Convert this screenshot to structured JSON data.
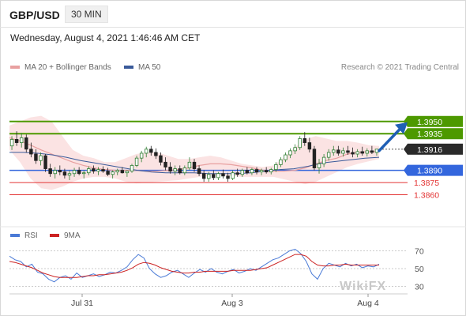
{
  "header": {
    "pair": "GBP/USD",
    "timeframe": "30 MIN"
  },
  "datetime": "Wednesday, August 4, 2021 1:46:46 AM CET",
  "legend": {
    "ma20_label": "MA 20 + Bollinger Bands",
    "ma50_label": "MA 50",
    "credit": "Research © 2021 Trading Central"
  },
  "rsi_legend": {
    "rsi_label": "RSI",
    "ma_label": "9MA"
  },
  "watermark": "WikiFX",
  "colors": {
    "ma20": "#e8a0a0",
    "ma50": "#3a5a9a",
    "bollinger_fill": "#fbe3e3",
    "resistance": "#4d9900",
    "pivot": "#3366dd",
    "support": "#e33333",
    "candle_up": "#2e7d32",
    "candle_down": "#222222",
    "arrow": "#1f5fb5",
    "current_tag": "#2a2a2a",
    "rsi": "#4a7ad6",
    "rsi_ma": "#cc2222"
  },
  "chart_data": [
    {
      "type": "candlestick",
      "x_ticks": [
        "Jul 31",
        "Aug 3",
        "Aug 4"
      ],
      "ylim": [
        1.3845,
        1.3975
      ],
      "levels": [
        {
          "label": "1.3950",
          "value": 1.395,
          "kind": "resistance"
        },
        {
          "label": "1.3935",
          "value": 1.3935,
          "kind": "resistance"
        },
        {
          "label": "1.3916",
          "value": 1.3916,
          "kind": "current"
        },
        {
          "label": "1.3890",
          "value": 1.389,
          "kind": "pivot"
        },
        {
          "label": "1.3875",
          "value": 1.3875,
          "kind": "support"
        },
        {
          "label": "1.3860",
          "value": 1.386,
          "kind": "support"
        }
      ],
      "candles": [
        [
          1.392,
          1.3932,
          1.3915,
          1.3928
        ],
        [
          1.3928,
          1.3938,
          1.392,
          1.3924
        ],
        [
          1.3924,
          1.3936,
          1.3918,
          1.393
        ],
        [
          1.393,
          1.3934,
          1.3912,
          1.3916
        ],
        [
          1.3916,
          1.3924,
          1.3906,
          1.391
        ],
        [
          1.391,
          1.3916,
          1.3898,
          1.3902
        ],
        [
          1.3902,
          1.3912,
          1.3896,
          1.3908
        ],
        [
          1.3908,
          1.391,
          1.3888,
          1.3892
        ],
        [
          1.3892,
          1.3898,
          1.3882,
          1.3886
        ],
        [
          1.3886,
          1.3894,
          1.388,
          1.389
        ],
        [
          1.389,
          1.3896,
          1.3884,
          1.3888
        ],
        [
          1.3888,
          1.3892,
          1.388,
          1.3884
        ],
        [
          1.3884,
          1.389,
          1.3878,
          1.3886
        ],
        [
          1.3886,
          1.3893,
          1.3882,
          1.389
        ],
        [
          1.389,
          1.3894,
          1.3884,
          1.3886
        ],
        [
          1.3886,
          1.389,
          1.388,
          1.3887
        ],
        [
          1.3887,
          1.3895,
          1.3884,
          1.3892
        ],
        [
          1.3892,
          1.3896,
          1.3886,
          1.3889
        ],
        [
          1.3889,
          1.3894,
          1.3884,
          1.3891
        ],
        [
          1.3891,
          1.3895,
          1.3887,
          1.3889
        ],
        [
          1.3889,
          1.3893,
          1.3883,
          1.3885
        ],
        [
          1.3885,
          1.389,
          1.388,
          1.3888
        ],
        [
          1.3888,
          1.3892,
          1.3884,
          1.389
        ],
        [
          1.389,
          1.3894,
          1.3886,
          1.3887
        ],
        [
          1.3887,
          1.389,
          1.3882,
          1.3889
        ],
        [
          1.3889,
          1.3898,
          1.3887,
          1.3896
        ],
        [
          1.3896,
          1.3908,
          1.3894,
          1.3905
        ],
        [
          1.3905,
          1.3914,
          1.39,
          1.3911
        ],
        [
          1.3911,
          1.3919,
          1.3906,
          1.3916
        ],
        [
          1.3916,
          1.392,
          1.3908,
          1.3912
        ],
        [
          1.3912,
          1.3917,
          1.3904,
          1.3908
        ],
        [
          1.3908,
          1.3912,
          1.3896,
          1.39
        ],
        [
          1.39,
          1.3906,
          1.389,
          1.3894
        ],
        [
          1.3894,
          1.39,
          1.3886,
          1.3889
        ],
        [
          1.3889,
          1.3896,
          1.3884,
          1.3892
        ],
        [
          1.3892,
          1.3896,
          1.3885,
          1.3887
        ],
        [
          1.3887,
          1.3896,
          1.3884,
          1.3893
        ],
        [
          1.3893,
          1.3906,
          1.389,
          1.39
        ],
        [
          1.39,
          1.3904,
          1.3888,
          1.3892
        ],
        [
          1.3892,
          1.3896,
          1.3883,
          1.3886
        ],
        [
          1.3886,
          1.389,
          1.3876,
          1.388
        ],
        [
          1.388,
          1.3888,
          1.3876,
          1.3885
        ],
        [
          1.3885,
          1.389,
          1.3878,
          1.3881
        ],
        [
          1.3881,
          1.3888,
          1.3878,
          1.3886
        ],
        [
          1.3886,
          1.3891,
          1.388,
          1.3883
        ],
        [
          1.3883,
          1.3887,
          1.3876,
          1.388
        ],
        [
          1.388,
          1.389,
          1.3878,
          1.3887
        ],
        [
          1.3887,
          1.3892,
          1.3882,
          1.3885
        ],
        [
          1.3885,
          1.3892,
          1.3882,
          1.389
        ],
        [
          1.389,
          1.3894,
          1.3885,
          1.3887
        ],
        [
          1.3887,
          1.3893,
          1.3884,
          1.3891
        ],
        [
          1.3891,
          1.3894,
          1.3885,
          1.3888
        ],
        [
          1.3888,
          1.3892,
          1.3884,
          1.389
        ],
        [
          1.389,
          1.3894,
          1.3886,
          1.3888
        ],
        [
          1.3888,
          1.3893,
          1.3885,
          1.3891
        ],
        [
          1.3891,
          1.39,
          1.3888,
          1.3897
        ],
        [
          1.3897,
          1.3906,
          1.3894,
          1.3903
        ],
        [
          1.3903,
          1.3912,
          1.39,
          1.3909
        ],
        [
          1.3909,
          1.3917,
          1.3905,
          1.3914
        ],
        [
          1.3914,
          1.3922,
          1.391,
          1.3918
        ],
        [
          1.3918,
          1.3932,
          1.3915,
          1.3929
        ],
        [
          1.3929,
          1.3937,
          1.392,
          1.3924
        ],
        [
          1.3924,
          1.393,
          1.3912,
          1.3916
        ],
        [
          1.3916,
          1.392,
          1.389,
          1.3893
        ],
        [
          1.3893,
          1.3904,
          1.3886,
          1.3898
        ],
        [
          1.3898,
          1.391,
          1.3894,
          1.3906
        ],
        [
          1.3906,
          1.3916,
          1.3902,
          1.3912
        ],
        [
          1.3912,
          1.392,
          1.3908,
          1.3915
        ],
        [
          1.3915,
          1.392,
          1.3908,
          1.3911
        ],
        [
          1.3911,
          1.3918,
          1.3907,
          1.3914
        ],
        [
          1.3914,
          1.392,
          1.3909,
          1.3912
        ],
        [
          1.3912,
          1.3918,
          1.3906,
          1.391
        ],
        [
          1.391,
          1.3916,
          1.3906,
          1.3913
        ],
        [
          1.3913,
          1.3919,
          1.3908,
          1.3911
        ],
        [
          1.3911,
          1.3917,
          1.3907,
          1.3914
        ],
        [
          1.3914,
          1.392,
          1.391,
          1.3912
        ],
        [
          1.3912,
          1.3916,
          1.3908,
          1.3916
        ]
      ],
      "ma20": [
        1.393,
        1.3926,
        1.3921,
        1.3915,
        1.391,
        1.3905,
        1.39,
        1.3896,
        1.3893,
        1.3891,
        1.389,
        1.389,
        1.389,
        1.3889,
        1.3889,
        1.389,
        1.3891,
        1.3893,
        1.3896,
        1.3898,
        1.3898,
        1.3897,
        1.3895,
        1.3893,
        1.389,
        1.3889,
        1.3889,
        1.389,
        1.3893,
        1.3898,
        1.3902,
        1.3905,
        1.391,
        1.3912,
        1.3913,
        1.3913
      ],
      "bb_upper": [
        1.3945,
        1.395,
        1.3955,
        1.3957,
        1.395,
        1.3932,
        1.3915,
        1.3908,
        1.3905,
        1.39,
        1.39,
        1.3905,
        1.391,
        1.3912,
        1.3912,
        1.3908,
        1.3904,
        1.3904,
        1.3906,
        1.3908,
        1.3906,
        1.3902,
        1.3898,
        1.3896,
        1.3894,
        1.3896,
        1.3906,
        1.3918,
        1.3928,
        1.3932,
        1.3929,
        1.3926,
        1.3926,
        1.3924,
        1.3921,
        1.392
      ],
      "bb_lower": [
        1.3915,
        1.39,
        1.388,
        1.3868,
        1.3866,
        1.387,
        1.3876,
        1.388,
        1.3882,
        1.3882,
        1.388,
        1.3876,
        1.3874,
        1.3875,
        1.3876,
        1.3877,
        1.3878,
        1.388,
        1.3882,
        1.3884,
        1.3884,
        1.3883,
        1.3882,
        1.3882,
        1.3882,
        1.3882,
        1.3879,
        1.3876,
        1.3873,
        1.3876,
        1.3882,
        1.3888,
        1.3894,
        1.3898,
        1.3901,
        1.3904
      ],
      "ma50": [
        1.3912,
        1.3912,
        1.3911,
        1.3909,
        1.3906,
        1.3902,
        1.3899,
        1.3896,
        1.3893,
        1.389,
        1.3888,
        1.3887,
        1.3887,
        1.3887,
        1.3886,
        1.3886,
        1.3886,
        1.3887,
        1.3889,
        1.3891,
        1.3892,
        1.3895,
        1.3899,
        1.3901,
        1.3903,
        1.3905,
        1.3906
      ]
    },
    {
      "type": "line",
      "title": "RSI",
      "ylim": [
        25,
        75
      ],
      "y_ticks": [
        70,
        50,
        30
      ],
      "series": [
        {
          "name": "RSI",
          "values": [
            64,
            60,
            58,
            52,
            55,
            46,
            44,
            38,
            35,
            40,
            42,
            38,
            45,
            40,
            42,
            44,
            41,
            43,
            46,
            45,
            48,
            52,
            60,
            66,
            62,
            50,
            44,
            40,
            42,
            46,
            48,
            44,
            40,
            45,
            49,
            46,
            50,
            46,
            44,
            47,
            49,
            45,
            47,
            50,
            48,
            52,
            56,
            60,
            62,
            66,
            70,
            72,
            67,
            58,
            44,
            38,
            50,
            56,
            54,
            52,
            56,
            53,
            55,
            51,
            53,
            52,
            55
          ]
        },
        {
          "name": "9MA",
          "values": [
            58,
            57,
            55,
            53,
            51,
            48,
            45,
            43,
            41,
            40,
            40,
            40,
            40,
            41,
            42,
            42,
            43,
            43,
            44,
            45,
            46,
            48,
            51,
            55,
            57,
            56,
            54,
            51,
            49,
            47,
            46,
            45,
            45,
            46,
            46,
            47,
            47,
            47,
            47,
            47,
            48,
            48,
            48,
            48,
            49,
            50,
            51,
            54,
            57,
            60,
            63,
            66,
            66,
            64,
            58,
            54,
            53,
            53,
            54,
            54,
            55,
            54,
            54,
            54,
            54,
            54,
            54
          ]
        }
      ]
    }
  ]
}
